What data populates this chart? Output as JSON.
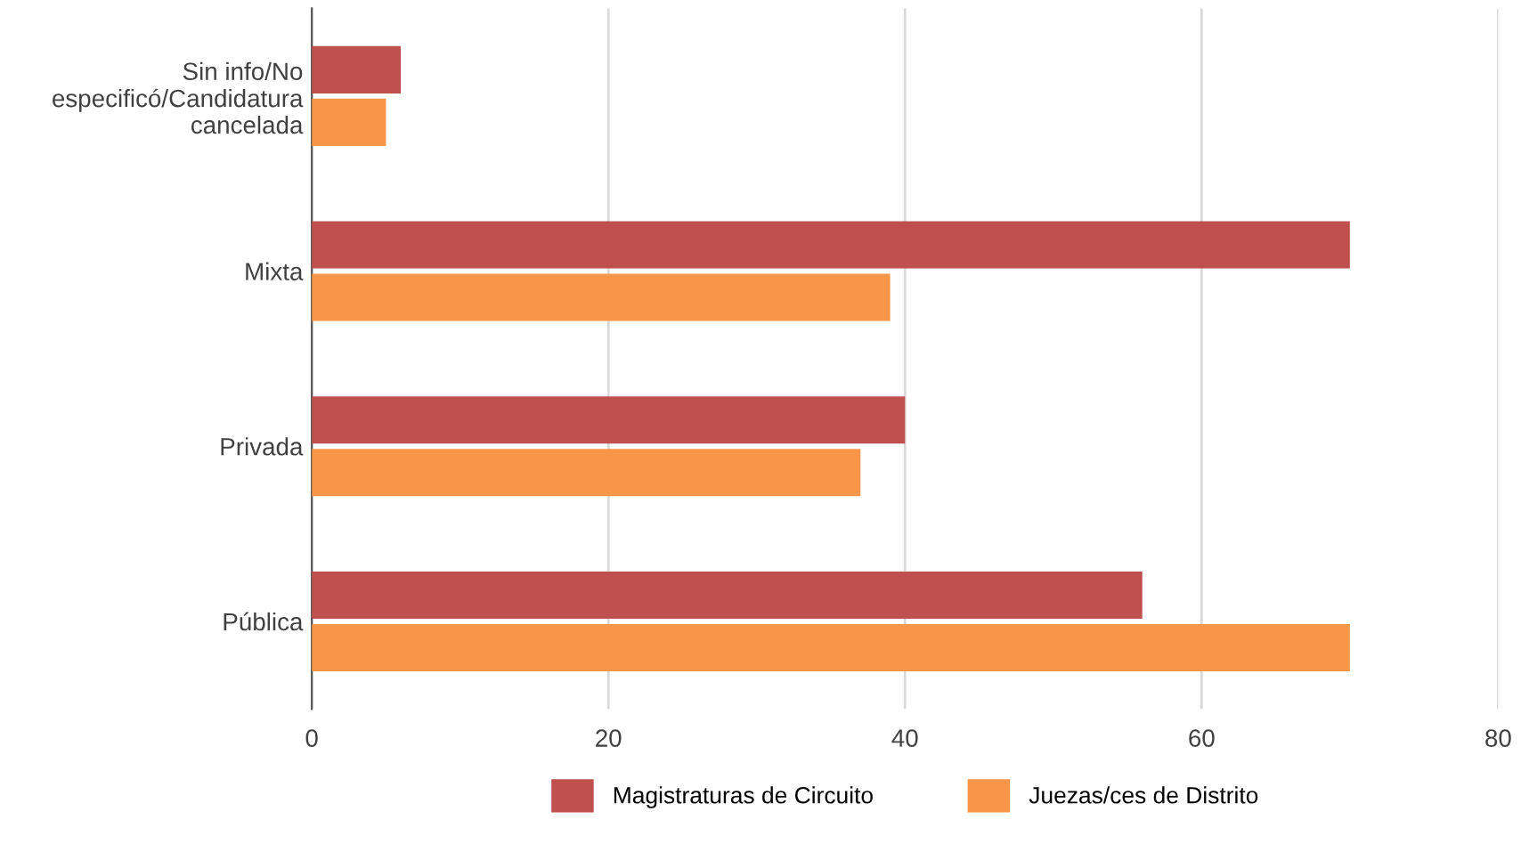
{
  "chart_data": {
    "type": "bar",
    "orientation": "horizontal",
    "categories": [
      "Sin info/No\nespecificó/Candidatura\ncancelada",
      "Mixta",
      "Privada",
      "Pública"
    ],
    "series": [
      {
        "name": "Magistraturas de Circuito",
        "color": "#c0504d",
        "values": [
          6,
          70,
          40,
          56
        ]
      },
      {
        "name": "Juezas/ces de Distrito",
        "color": "#f79646",
        "values": [
          5,
          39,
          37,
          70
        ]
      }
    ],
    "xlim": [
      0,
      80
    ],
    "xticks": [
      0,
      20,
      40,
      60,
      80
    ],
    "grid": "x",
    "legend": "bottom"
  }
}
